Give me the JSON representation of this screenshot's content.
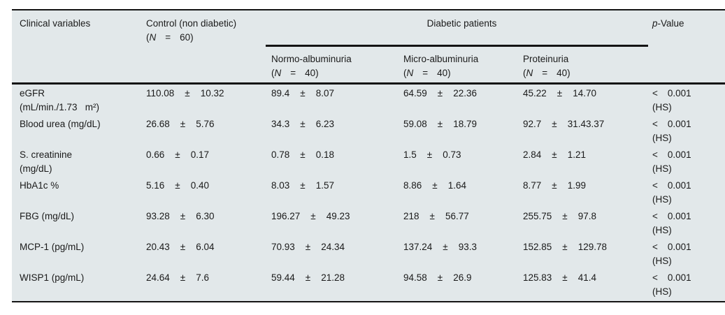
{
  "colors": {
    "page_bg": "#ffffff",
    "panel_bg": "#e2e8ea",
    "rule": "#141414",
    "text": "#1a1a1a"
  },
  "pm": "±",
  "header": {
    "clinical_variables": "Clinical variables",
    "control": {
      "title": "Control (non diabetic)",
      "n_open": "(",
      "n_label": "N",
      "n_eq": "=",
      "n_value": "60",
      "n_close": ")"
    },
    "diabetic": {
      "title": "Diabetic patients"
    },
    "subgroups": [
      {
        "title": "Normo-albuminuria",
        "n_open": "(",
        "n_label": "N",
        "n_eq": "=",
        "n_value": "40",
        "n_close": ")"
      },
      {
        "title": "Micro-albuminuria",
        "n_open": "(",
        "n_label": "N",
        "n_eq": "=",
        "n_value": "40",
        "n_close": ")"
      },
      {
        "title": "Proteinuria",
        "n_open": "(",
        "n_label": "N",
        "n_eq": "=",
        "n_value": "40",
        "n_close": ")"
      }
    ],
    "p_value": {
      "italic": "p",
      "rest": "-Value"
    }
  },
  "rows": [
    {
      "var1": "eGFR",
      "var2": "(mL/min./1.73   m²)",
      "c0": {
        "m": "110.08",
        "s": "10.32"
      },
      "c1": {
        "m": "89.4",
        "s": "8.07"
      },
      "c2": {
        "m": "64.59",
        "s": "22.36"
      },
      "c3": {
        "m": "45.22",
        "s": "14.70"
      },
      "p1": "<",
      "p2": "0.001",
      "p3": "(HS)"
    },
    {
      "var1": "Blood urea (mg/dL)",
      "var2": "",
      "c0": {
        "m": "26.68",
        "s": "5.76"
      },
      "c1": {
        "m": "34.3",
        "s": "6.23"
      },
      "c2": {
        "m": "59.08",
        "s": "18.79"
      },
      "c3": {
        "m": "92.7",
        "s": "31.43.37"
      },
      "p1": "<",
      "p2": "0.001",
      "p3": "(HS)"
    },
    {
      "var1": "S. creatinine",
      "var2": "(mg/dL)",
      "c0": {
        "m": "0.66",
        "s": "0.17"
      },
      "c1": {
        "m": "0.78",
        "s": "0.18"
      },
      "c2": {
        "m": "1.5",
        "s": "0.73"
      },
      "c3": {
        "m": "2.84",
        "s": "1.21"
      },
      "p1": "<",
      "p2": "0.001",
      "p3": "(HS)"
    },
    {
      "var1": "HbA1c %",
      "var2": "",
      "c0": {
        "m": "5.16",
        "s": "0.40"
      },
      "c1": {
        "m": "8.03",
        "s": "1.57"
      },
      "c2": {
        "m": "8.86",
        "s": "1.64"
      },
      "c3": {
        "m": "8.77",
        "s": "1.99"
      },
      "p1": "<",
      "p2": "0.001",
      "p3": "(HS)"
    },
    {
      "var1": "FBG (mg/dL)",
      "var2": "",
      "c0": {
        "m": "93.28",
        "s": "6.30"
      },
      "c1": {
        "m": "196.27",
        "s": "49.23"
      },
      "c2": {
        "m": "218",
        "s": "56.77"
      },
      "c3": {
        "m": "255.75",
        "s": "97.8"
      },
      "p1": "<",
      "p2": "0.001",
      "p3": "(HS)"
    },
    {
      "var1": "MCP-1 (pg/mL)",
      "var2": "",
      "c0": {
        "m": "20.43",
        "s": "6.04"
      },
      "c1": {
        "m": "70.93",
        "s": "24.34"
      },
      "c2": {
        "m": "137.24",
        "s": "93.3"
      },
      "c3": {
        "m": "152.85",
        "s": "129.78"
      },
      "p1": "<",
      "p2": "0.001",
      "p3": "(HS)"
    },
    {
      "var1": "WISP1 (pg/mL)",
      "var2": "",
      "c0": {
        "m": "24.64",
        "s": "7.6"
      },
      "c1": {
        "m": "59.44",
        "s": "21.28"
      },
      "c2": {
        "m": "94.58",
        "s": "26.9"
      },
      "c3": {
        "m": "125.83",
        "s": "41.4"
      },
      "p1": "<",
      "p2": "0.001",
      "p3": "(HS)"
    }
  ]
}
